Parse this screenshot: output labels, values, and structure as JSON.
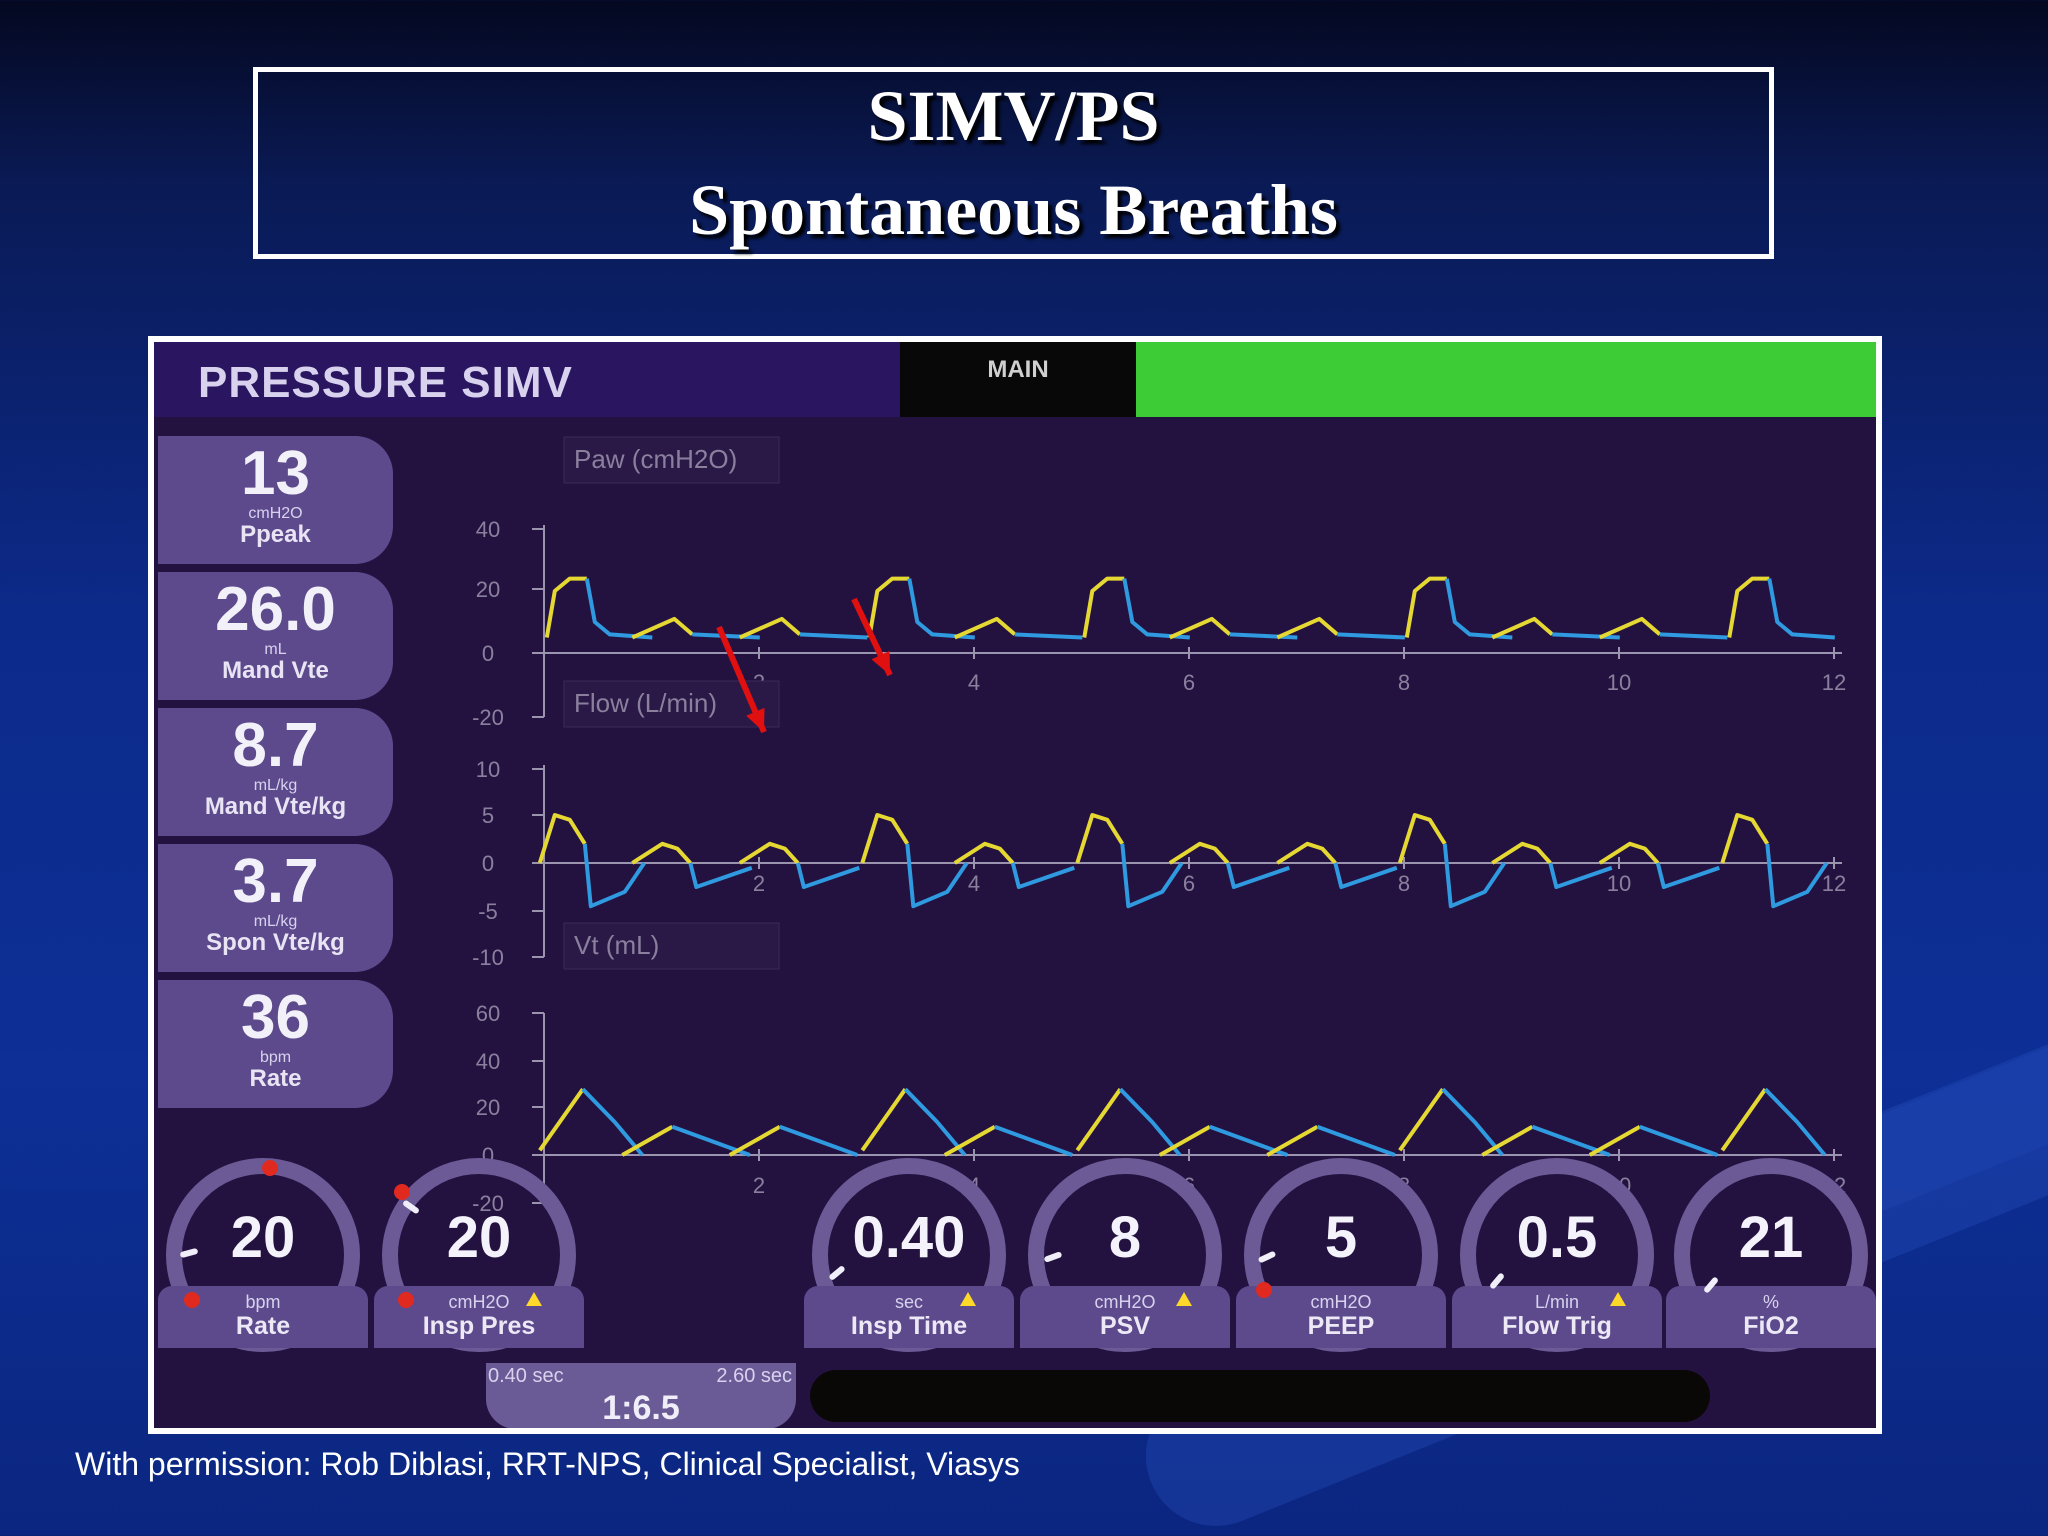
{
  "slide": {
    "title_line1": "SIMV/PS",
    "title_line2": "Spontaneous Breaths",
    "credit": "With permission: Rob Diblasi, RRT-NPS, Clinical Specialist, Viasys"
  },
  "header": {
    "mode": "PRESSURE SIMV",
    "tab": "MAIN",
    "status_color": "#3dcc35"
  },
  "readouts": [
    {
      "value": "13",
      "unit": "cmH2O",
      "label": "Ppeak"
    },
    {
      "value": "26.0",
      "unit": "mL",
      "label": "Mand Vte"
    },
    {
      "value": "8.7",
      "unit": "mL/kg",
      "label": "Mand Vte/kg"
    },
    {
      "value": "3.7",
      "unit": "mL/kg",
      "label": "Spon Vte/kg"
    },
    {
      "value": "36",
      "unit": "bpm",
      "label": "Rate"
    }
  ],
  "graphs": [
    {
      "label": "Paw (cmH2O)",
      "yticks": [
        "40",
        "20",
        "0",
        "-20"
      ],
      "xticks": [
        "2",
        "4",
        "6",
        "8",
        "10",
        "12"
      ]
    },
    {
      "label": "Flow (L/min)",
      "yticks": [
        "10",
        "5",
        "0",
        "-5",
        "-10"
      ],
      "xticks": [
        "2",
        "4",
        "6",
        "8",
        "10",
        "12"
      ]
    },
    {
      "label": "Vt (mL)",
      "yticks": [
        "60",
        "40",
        "20",
        "0",
        "-20"
      ],
      "xticks": [
        "2",
        "4",
        "6",
        "8",
        "10",
        "12"
      ]
    }
  ],
  "trace_colors": {
    "inspiration": "#e6d832",
    "expiration": "#2f9ae0",
    "arrow": "#e01010"
  },
  "settings": [
    {
      "value": "20",
      "unit": "bpm",
      "label": "Rate"
    },
    {
      "value": "20",
      "unit": "cmH2O",
      "label": "Insp Pres"
    },
    {
      "value": "0.40",
      "unit": "sec",
      "label": "Insp Time"
    },
    {
      "value": "8",
      "unit": "cmH2O",
      "label": "PSV"
    },
    {
      "value": "5",
      "unit": "cmH2O",
      "label": "PEEP"
    },
    {
      "value": "0.5",
      "unit": "L/min",
      "label": "Flow Trig"
    },
    {
      "value": "21",
      "unit": "%",
      "label": "FiO2"
    }
  ],
  "ie": {
    "insp": "0.40 sec",
    "exp": "2.60 sec",
    "ratio": "1:6.5"
  }
}
